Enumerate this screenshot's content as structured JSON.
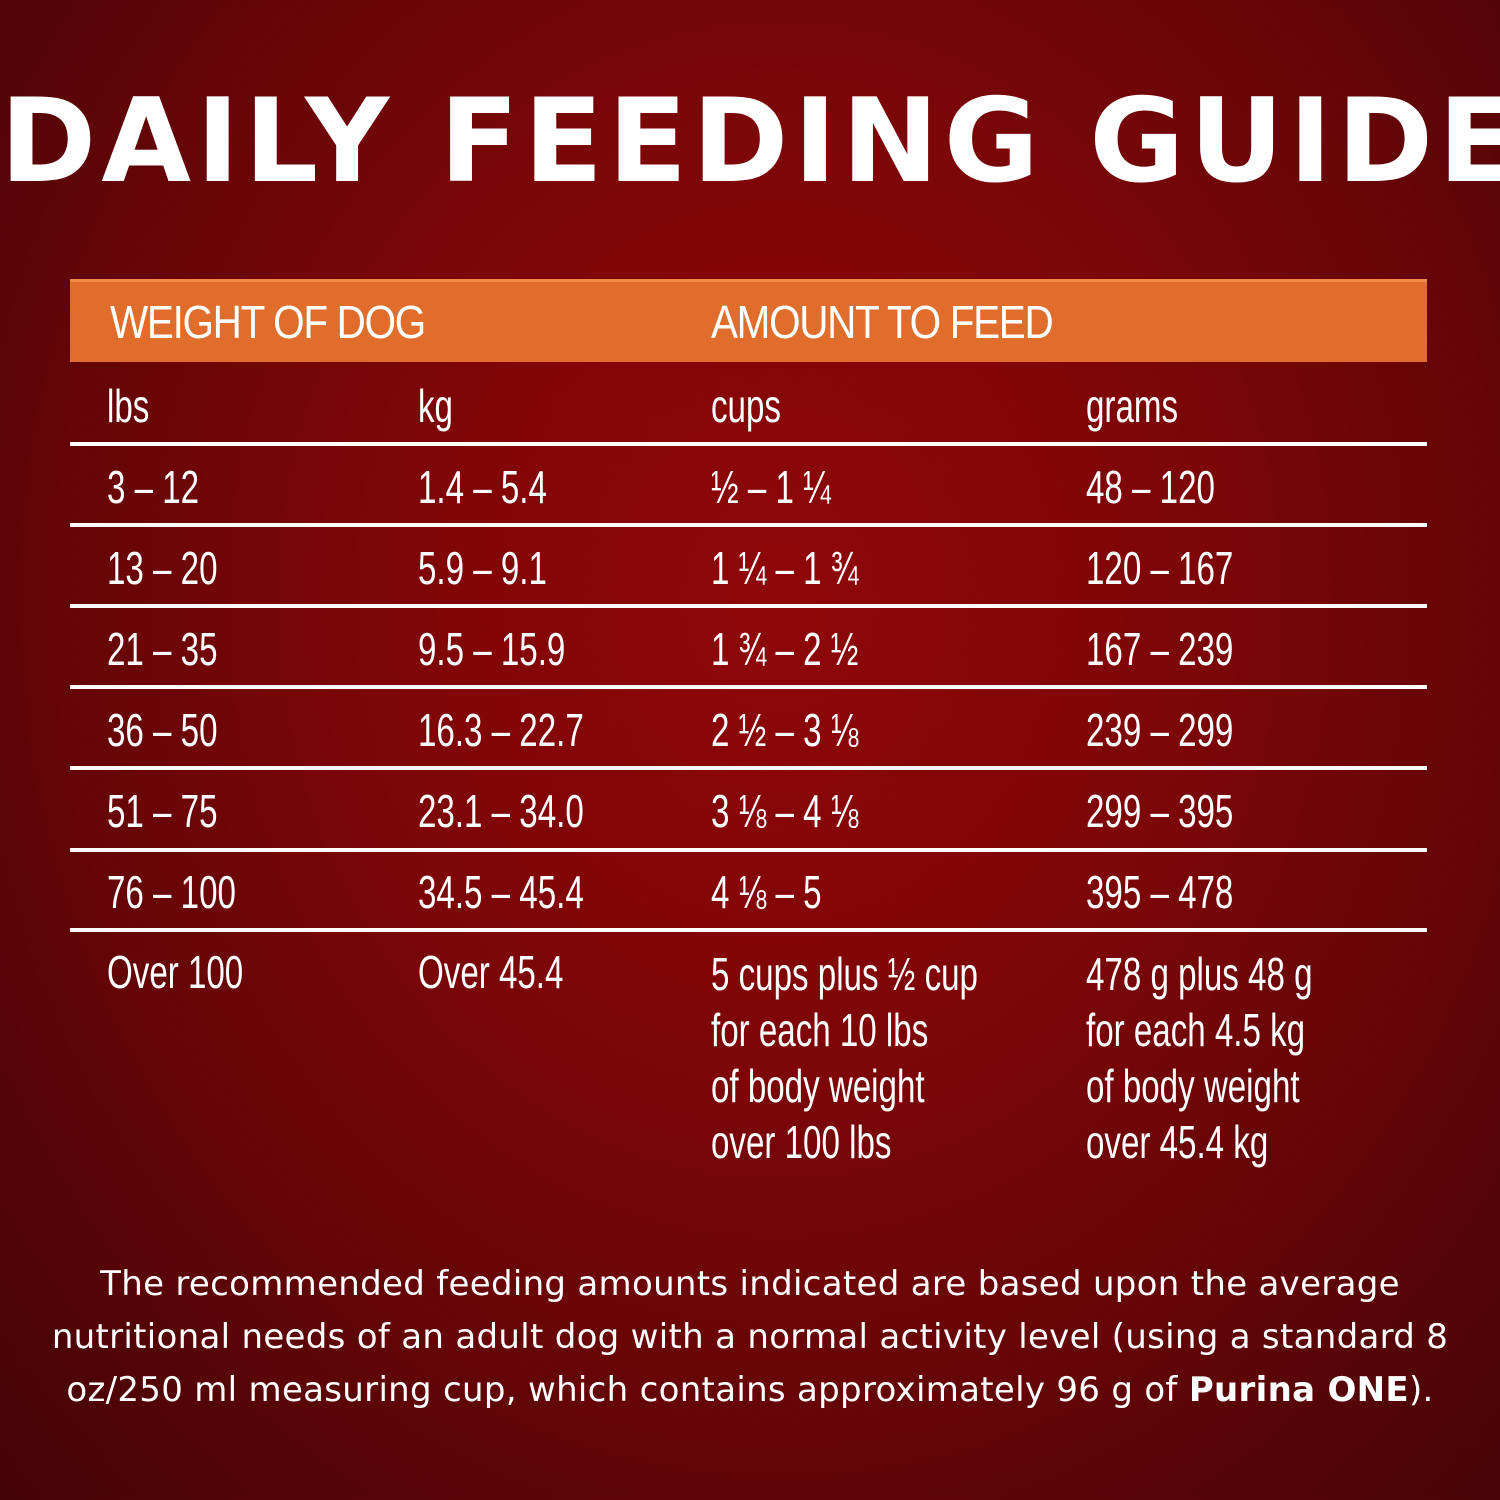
{
  "title": "DAILY FEEDING GUIDE",
  "header": {
    "weight_label": "WEIGHT OF DOG",
    "amount_label": "AMOUNT TO FEED"
  },
  "columns": [
    "lbs",
    "kg",
    "cups",
    "grams"
  ],
  "rows": [
    [
      "3 – 12",
      "1.4 – 5.4",
      "½ – 1 ¼",
      "48 – 120"
    ],
    [
      "13 – 20",
      "5.9 – 9.1",
      "1 ¼ – 1 ¾",
      "120 – 167"
    ],
    [
      "21 – 35",
      "9.5 – 15.9",
      "1 ¾ – 2 ½",
      "167 – 239"
    ],
    [
      "36 – 50",
      "16.3 – 22.7",
      "2 ½ – 3 ⅛",
      "239 – 299"
    ],
    [
      "51 – 75",
      "23.1 – 34.0",
      "3 ⅛ – 4 ⅛",
      "299 – 395"
    ],
    [
      "76 – 100",
      "34.5 – 45.4",
      "4 ⅛ – 5",
      "395 – 478"
    ]
  ],
  "last_row": {
    "lbs": "Over 100",
    "kg": "Over 45.4",
    "cups": "5 cups plus ½ cup\nfor each 10 lbs\nof body weight\nover 100 lbs",
    "grams": "478 g plus 48 g\nfor each 4.5 kg\nof body weight\nover 45.4 kg"
  },
  "footnote": {
    "text": "The recommended feeding amounts indicated are based upon the average nutritional needs of an adult dog with a normal activity level (using a standard 8 oz/250 ml measuring cup, which contains approximately 96 g of ",
    "brand": "Purina ONE",
    "end": ")."
  }
}
